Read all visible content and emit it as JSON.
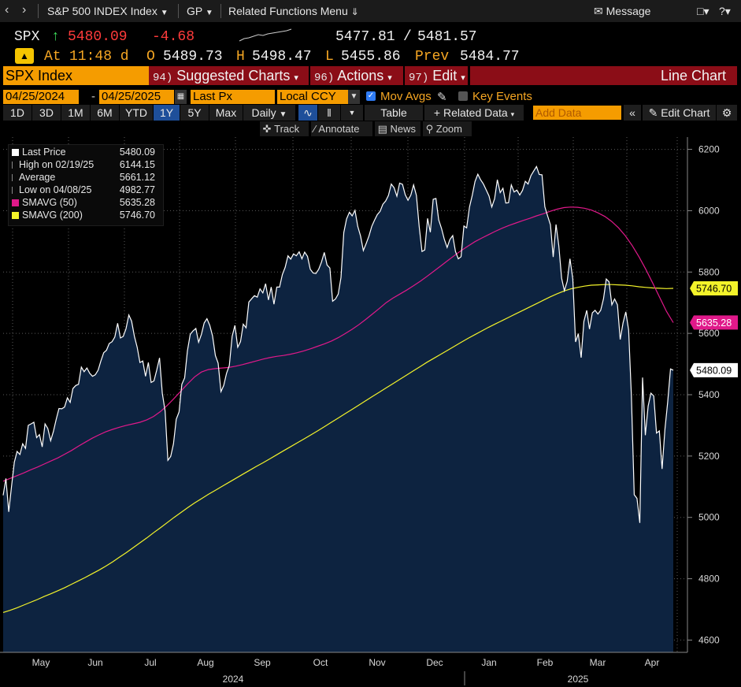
{
  "topbar": {
    "security": "S&P 500 INDEX Index",
    "function": "GP",
    "related_menu": "Related Functions Menu",
    "message": "Message"
  },
  "quote": {
    "ticker": "SPX",
    "last": "5480.09",
    "change": "-4.68",
    "bid": "5477.81",
    "ask": "5481.57",
    "at_label": "At",
    "time": "11:48 d",
    "open_label": "O",
    "open": "5489.73",
    "high_label": "H",
    "high": "5498.47",
    "low_label": "L",
    "low": "5455.86",
    "prev_label": "Prev",
    "prev": "5484.77"
  },
  "menubar": {
    "security": "SPX Index",
    "suggested_num": "94)",
    "suggested": "Suggested Charts",
    "actions_num": "96)",
    "actions": "Actions",
    "edit_num": "97)",
    "edit": "Edit",
    "title": "Line Chart"
  },
  "controls": {
    "start_date": "04/25/2024",
    "dash": "-",
    "end_date": "04/25/2025",
    "field": "Last Px",
    "currency": "Local CCY",
    "mov_avgs": "Mov Avgs",
    "key_events": "Key Events"
  },
  "toolbar": {
    "ranges": [
      "1D",
      "3D",
      "1M",
      "6M",
      "YTD",
      "1Y",
      "5Y",
      "Max"
    ],
    "selected_range": "1Y",
    "period": "Daily",
    "table": "Table",
    "related_data": "Related Data",
    "add_data_placeholder": "Add Data",
    "edit_chart": "Edit Chart",
    "track": "Track",
    "annotate": "Annotate",
    "news": "News",
    "zoom": "Zoom"
  },
  "legend": [
    {
      "label": "Last Price",
      "value": "5480.09",
      "color": "#ffffff"
    },
    {
      "label": "High on 02/19/25",
      "value": "6144.15",
      "color": "#888888"
    },
    {
      "label": "Average",
      "value": "5661.12",
      "color": "#888888"
    },
    {
      "label": "Low on 04/08/25",
      "value": "4982.77",
      "color": "#888888"
    },
    {
      "label": "SMAVG (50)",
      "value": "5635.28",
      "color": "#e0198a"
    },
    {
      "label": "SMAVG (200)",
      "value": "5746.70",
      "color": "#f3f32a"
    }
  ],
  "chart_data": {
    "type": "line",
    "title": "SPX Index",
    "ylim": [
      4560,
      6240
    ],
    "yticks": [
      4600,
      4800,
      5000,
      5200,
      5400,
      5600,
      5800,
      6000,
      6200
    ],
    "x_month_labels": [
      "May",
      "Jun",
      "Jul",
      "Aug",
      "Sep",
      "Oct",
      "Nov",
      "Dec",
      "Jan",
      "Feb",
      "Mar",
      "Apr"
    ],
    "x_year_labels": [
      "2024",
      "2025"
    ],
    "colors": {
      "price_line": "#ffffff",
      "price_fill": "#0d2340",
      "sma50": "#e0198a",
      "sma200": "#f3f32a"
    },
    "end_labels": {
      "sma200": "5746.70",
      "sma50": "5635.28",
      "last": "5480.09"
    },
    "series": [
      {
        "name": "Last Price",
        "values": [
          5072,
          5127,
          5018,
          5100,
          5180,
          5215,
          5205,
          5240,
          5225,
          5300,
          5305,
          5310,
          5260,
          5270,
          5230,
          5305,
          5290,
          5250,
          5280,
          5320,
          5355,
          5354,
          5360,
          5390,
          5375,
          5420,
          5430,
          5434,
          5490,
          5475,
          5487,
          5470,
          5460,
          5465,
          5480,
          5510,
          5537,
          5545,
          5567,
          5573,
          5588,
          5633,
          5585,
          5590,
          5615,
          5660,
          5640,
          5590,
          5555,
          5505,
          5510,
          5460,
          5505,
          5440,
          5445,
          5480,
          5520,
          5405,
          5346,
          5186,
          5199,
          5240,
          5320,
          5344,
          5434,
          5455,
          5543,
          5597,
          5608,
          5616,
          5571,
          5597,
          5634,
          5648,
          5626,
          5592,
          5528,
          5503,
          5410,
          5430,
          5470,
          5495,
          5590,
          5626,
          5555,
          5573,
          5630,
          5618,
          5702,
          5713,
          5723,
          5718,
          5745,
          5732,
          5762,
          5709,
          5751,
          5695,
          5751,
          5751,
          5792,
          5815,
          5853,
          5842,
          5859,
          5853,
          5866,
          5843,
          5865,
          5851,
          5809,
          5797,
          5795,
          5809,
          5832,
          5864,
          5823,
          5813,
          5705,
          5712,
          5728,
          5782,
          5929,
          5973,
          5995,
          5983,
          6001,
          5949,
          5917,
          5870,
          5893,
          5917,
          5949,
          5969,
          5987,
          5998,
          6021,
          6032,
          6050,
          6087,
          6075,
          6047,
          6090,
          6086,
          6052,
          6034,
          6051,
          6084,
          6050,
          5949,
          5867,
          5872,
          5975,
          5930,
          6037,
          6040,
          5970,
          5942,
          5907,
          5880,
          5906,
          5919,
          5867,
          5843,
          5850,
          5950,
          5944,
          6012,
          6050,
          6095,
          6119,
          6101,
          6087,
          6068,
          6048,
          6012,
          6039,
          6101,
          6059,
          6073,
          6025,
          6026,
          6084,
          6061,
          6067,
          6051,
          6066,
          6096,
          6087,
          6114,
          6129,
          6144,
          6118,
          6117,
          6013,
          5983,
          5954,
          5849,
          5955,
          5886,
          5780,
          5739,
          5770,
          5843,
          5778,
          5572,
          5599,
          5521,
          5639,
          5675,
          5614,
          5667,
          5675,
          5663,
          5675,
          5713,
          5777,
          5768,
          5693,
          5712,
          5693,
          5580,
          5634,
          5670,
          5611,
          5396,
          5074,
          5062,
          4982,
          5456,
          5268,
          5363,
          5405,
          5396,
          5275,
          5282,
          5158,
          5287,
          5376,
          5484,
          5480
        ]
      },
      {
        "name": "SMAVG (50)",
        "values": [
          5118,
          5127,
          5136,
          5145,
          5155,
          5164,
          5174,
          5184,
          5194,
          5206,
          5218,
          5232,
          5245,
          5258,
          5269,
          5279,
          5287,
          5294,
          5300,
          5305,
          5310,
          5318,
          5329,
          5345,
          5365,
          5388,
          5412,
          5436,
          5458,
          5474,
          5482,
          5485,
          5487,
          5489,
          5493,
          5498,
          5504,
          5510,
          5516,
          5521,
          5525,
          5528,
          5532,
          5537,
          5543,
          5550,
          5558,
          5566,
          5575,
          5586,
          5599,
          5613,
          5628,
          5645,
          5663,
          5681,
          5700,
          5715,
          5728,
          5741,
          5755,
          5770,
          5786,
          5803,
          5820,
          5837,
          5854,
          5870,
          5885,
          5899,
          5911,
          5922,
          5933,
          5943,
          5952,
          5960,
          5968,
          5975,
          5983,
          5990,
          5998,
          6005,
          6010,
          6012,
          6011,
          6008,
          6002,
          5993,
          5981,
          5965,
          5944,
          5918,
          5886,
          5849,
          5808,
          5764,
          5718,
          5672,
          5635
        ]
      },
      {
        "name": "SMAVG (200)",
        "values": [
          4690,
          4697,
          4705,
          4714,
          4723,
          4732,
          4742,
          4751,
          4761,
          4771,
          4782,
          4793,
          4804,
          4816,
          4828,
          4841,
          4855,
          4870,
          4885,
          4901,
          4917,
          4933,
          4950,
          4966,
          4983,
          5000,
          5016,
          5032,
          5047,
          5061,
          5075,
          5088,
          5101,
          5114,
          5127,
          5140,
          5153,
          5166,
          5178,
          5191,
          5204,
          5217,
          5230,
          5243,
          5256,
          5269,
          5282,
          5296,
          5310,
          5324,
          5338,
          5352,
          5366,
          5380,
          5394,
          5408,
          5422,
          5436,
          5450,
          5464,
          5478,
          5492,
          5506,
          5519,
          5532,
          5545,
          5558,
          5571,
          5584,
          5596,
          5608,
          5620,
          5631,
          5642,
          5653,
          5664,
          5675,
          5686,
          5697,
          5708,
          5719,
          5729,
          5738,
          5745,
          5750,
          5754,
          5757,
          5758,
          5759,
          5759,
          5758,
          5757,
          5755,
          5752,
          5750,
          5748,
          5747,
          5746,
          5746.7
        ]
      }
    ]
  }
}
